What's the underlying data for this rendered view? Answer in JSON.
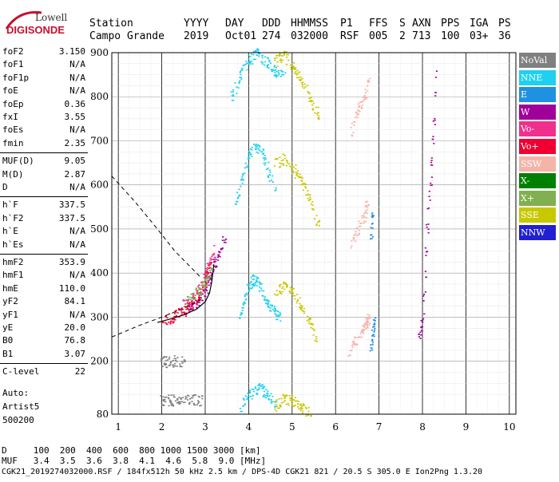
{
  "logo": {
    "line1": "Lowell",
    "line2": "DIGISONDE"
  },
  "header": {
    "labels": [
      "Station",
      "YYYY",
      "DAY",
      "DDD",
      "HHMMSS",
      "P1",
      "FFS",
      "S",
      "AXN",
      "PPS",
      "IGA",
      "PS"
    ],
    "values": [
      "Campo Grande",
      "2019",
      "Oct01",
      "274",
      "032000",
      "RSF",
      "005",
      "2",
      "713",
      "100",
      "03+",
      "36"
    ]
  },
  "parameters": [
    {
      "name": "foF2",
      "value": "3.150"
    },
    {
      "name": "foF1",
      "value": "N/A"
    },
    {
      "name": "foF1p",
      "value": "N/A"
    },
    {
      "name": "foE",
      "value": "N/A"
    },
    {
      "name": "foEp",
      "value": "0.36"
    },
    {
      "name": "fxI",
      "value": "3.55"
    },
    {
      "name": "foEs",
      "value": "N/A"
    },
    {
      "name": "fmin",
      "value": "2.35"
    },
    {
      "name": "MUF(D)",
      "value": "9.05"
    },
    {
      "name": "M(D)",
      "value": "2.87"
    },
    {
      "name": "D",
      "value": "N/A"
    },
    {
      "name": "h`F",
      "value": "337.5"
    },
    {
      "name": "h`F2",
      "value": "337.5"
    },
    {
      "name": "h`E",
      "value": "N/A"
    },
    {
      "name": "h`Es",
      "value": "N/A"
    },
    {
      "name": "hmF2",
      "value": "353.9"
    },
    {
      "name": "hmF1",
      "value": "N/A"
    },
    {
      "name": "hmE",
      "value": "110.0"
    },
    {
      "name": "yF2",
      "value": "84.1"
    },
    {
      "name": "yF1",
      "value": "N/A"
    },
    {
      "name": "yE",
      "value": "20.0"
    },
    {
      "name": "B0",
      "value": "76.8"
    },
    {
      "name": "B1",
      "value": "3.07"
    },
    {
      "name": "C-level",
      "value": "22"
    }
  ],
  "auto": {
    "line1": "Auto:",
    "line2": "Artist5",
    "line3": "500200"
  },
  "legend": [
    {
      "label": "NoVal",
      "color": "#808080"
    },
    {
      "label": "NNE",
      "color": "#1fd0f0"
    },
    {
      "label": "E",
      "color": "#2090e0"
    },
    {
      "label": "W",
      "color": "#a0009a"
    },
    {
      "label": "Vo-",
      "color": "#f0308c"
    },
    {
      "label": "Vo+",
      "color": "#f00030"
    },
    {
      "label": "SSW",
      "color": "#f4b4a8"
    },
    {
      "label": "X-",
      "color": "#008000"
    },
    {
      "label": "X+",
      "color": "#80b050"
    },
    {
      "label": "SSE",
      "color": "#c8c800"
    },
    {
      "label": "NNW",
      "color": "#2020d0"
    }
  ],
  "scale": {
    "d_label": "D",
    "d_values": [
      "100",
      "200",
      "400",
      "600",
      "800",
      "1000",
      "1500",
      "3000"
    ],
    "d_unit": "[km]",
    "muf_label": "MUF",
    "muf_values": [
      "3.4",
      "3.5",
      "3.6",
      "3.8",
      "4.1",
      "4.6",
      "5.8",
      "9.0"
    ],
    "muf_unit": "[MHz]"
  },
  "footer": "CGK21_2019274032000.RSF / 184fx512h 50 kHz 2.5 km / DPS-4D CGK21 821 / 20.5 S 305.0 E Ion2Png 1.3.20",
  "chart_data": {
    "type": "scatter",
    "title": "",
    "xlabel": "",
    "ylabel": "",
    "xlim": [
      0.85,
      10.15
    ],
    "ylim": [
      80,
      900
    ],
    "xticks": [
      1,
      2,
      3,
      4,
      5,
      6,
      7,
      8,
      9,
      10
    ],
    "yticks": [
      80,
      200,
      300,
      400,
      500,
      600,
      700,
      800,
      900
    ],
    "grid": true,
    "legend_position": "right",
    "series": [
      {
        "label_key": "NNE",
        "color": "#1fd0f0",
        "traces": [
          {
            "x": [
              3.8,
              3.9,
              4.0,
              4.1,
              4.2,
              4.3,
              4.45,
              4.6,
              4.7
            ],
            "y": [
              300,
              345,
              372,
              385,
              380,
              360,
              330,
              310,
              300
            ]
          },
          {
            "x": [
              3.7,
              3.85,
              4.0,
              4.15,
              4.3,
              4.45,
              4.6
            ],
            "y": [
              560,
              615,
              665,
              690,
              670,
              630,
              600
            ]
          },
          {
            "x": [
              3.6,
              3.8,
              4.0,
              4.2,
              4.4,
              4.6,
              4.8
            ],
            "y": [
              800,
              850,
              885,
              900,
              880,
              860,
              850
            ]
          },
          {
            "x": [
              3.8,
              4.0,
              4.2,
              4.4,
              4.6
            ],
            "y": [
              100,
              125,
              140,
              130,
              110
            ]
          }
        ]
      },
      {
        "label_key": "SSE",
        "color": "#c8c800",
        "traces": [
          {
            "x": [
              4.6,
              4.8,
              5.0,
              5.2,
              5.4,
              5.55
            ],
            "y": [
              360,
              370,
              355,
              330,
              290,
              250
            ]
          },
          {
            "x": [
              4.6,
              4.8,
              5.0,
              5.2,
              5.4,
              5.6
            ],
            "y": [
              650,
              660,
              640,
              610,
              570,
              510
            ]
          },
          {
            "x": [
              4.6,
              4.8,
              5.0,
              5.2,
              5.4,
              5.6
            ],
            "y": [
              880,
              895,
              870,
              840,
              800,
              760
            ]
          },
          {
            "x": [
              4.6,
              4.8,
              5.0,
              5.2,
              5.4
            ],
            "y": [
              100,
              115,
              110,
              95,
              85
            ]
          }
        ]
      },
      {
        "label_key": "SSW",
        "color": "#f4b4a8",
        "traces": [
          {
            "x": [
              6.3,
              6.45,
              6.6,
              6.7,
              6.75
            ],
            "y": [
              220,
              245,
              265,
              285,
              300
            ]
          },
          {
            "x": [
              6.35,
              6.5,
              6.65,
              6.72
            ],
            "y": [
              470,
              500,
              530,
              560
            ]
          },
          {
            "x": [
              6.35,
              6.5,
              6.65,
              6.75
            ],
            "y": [
              720,
              770,
              800,
              840
            ]
          }
        ]
      },
      {
        "label_key": "W",
        "color": "#a0009a",
        "traces": [
          {
            "x": [
              2.6,
              2.8,
              3.0,
              3.1,
              3.2,
              3.3,
              3.45
            ],
            "y": [
              320,
              335,
              360,
              390,
              420,
              450,
              480
            ]
          },
          {
            "x": [
              7.9,
              8.0,
              8.1,
              8.2,
              8.3
            ],
            "y": [
              250,
              300,
              500,
              650,
              850
            ]
          }
        ]
      },
      {
        "label_key": "Vo-",
        "color": "#f0308c",
        "traces": [
          {
            "x": [
              2.5,
              2.7,
              2.9,
              3.0,
              3.1,
              3.2
            ],
            "y": [
              330,
              345,
              370,
              400,
              430,
              455
            ]
          }
        ]
      },
      {
        "label_key": "Vo+",
        "color": "#f00030",
        "traces": [
          {
            "x": [
              2.0,
              2.3,
              2.6,
              2.85,
              3.0,
              3.1
            ],
            "y": [
              290,
              305,
              320,
              345,
              380,
              420
            ]
          }
        ]
      },
      {
        "label_key": "X+",
        "color": "#80b050",
        "traces": [
          {
            "x": [
              2.6,
              2.8,
              3.0,
              3.15
            ],
            "y": [
              340,
              355,
              380,
              410
            ]
          }
        ]
      },
      {
        "label_key": "E",
        "color": "#2090e0",
        "traces": [
          {
            "x": [
              6.8,
              6.85,
              6.9
            ],
            "y": [
              230,
              270,
              300
            ]
          },
          {
            "x": [
              6.8,
              6.85
            ],
            "y": [
              480,
              540
            ]
          }
        ]
      },
      {
        "label_key": "NoVal",
        "color": "#808080",
        "traces": [
          {
            "x": [
              1.95,
              2.1,
              2.3,
              2.5
            ],
            "y": [
              200,
              200,
              201,
              200
            ]
          },
          {
            "x": [
              1.95,
              2.2,
              2.4,
              2.7,
              2.9
            ],
            "y": [
              112,
              113,
              112,
              113,
              112
            ]
          }
        ]
      }
    ],
    "profile_solid": {
      "x": [
        1.9,
        2.2,
        2.5,
        2.8,
        3.0,
        3.1,
        3.15,
        3.2
      ],
      "y": [
        288,
        296,
        305,
        318,
        335,
        355,
        380,
        420
      ]
    },
    "profile_dashed": {
      "x": [
        0.85,
        1.5,
        2.0,
        2.5,
        2.9
      ],
      "y": [
        255,
        282,
        300,
        320,
        340
      ],
      "x2": [
        0.85,
        1.4,
        1.9,
        2.3,
        2.7,
        2.9
      ],
      "y2": [
        620,
        560,
        500,
        450,
        410,
        390
      ]
    }
  }
}
